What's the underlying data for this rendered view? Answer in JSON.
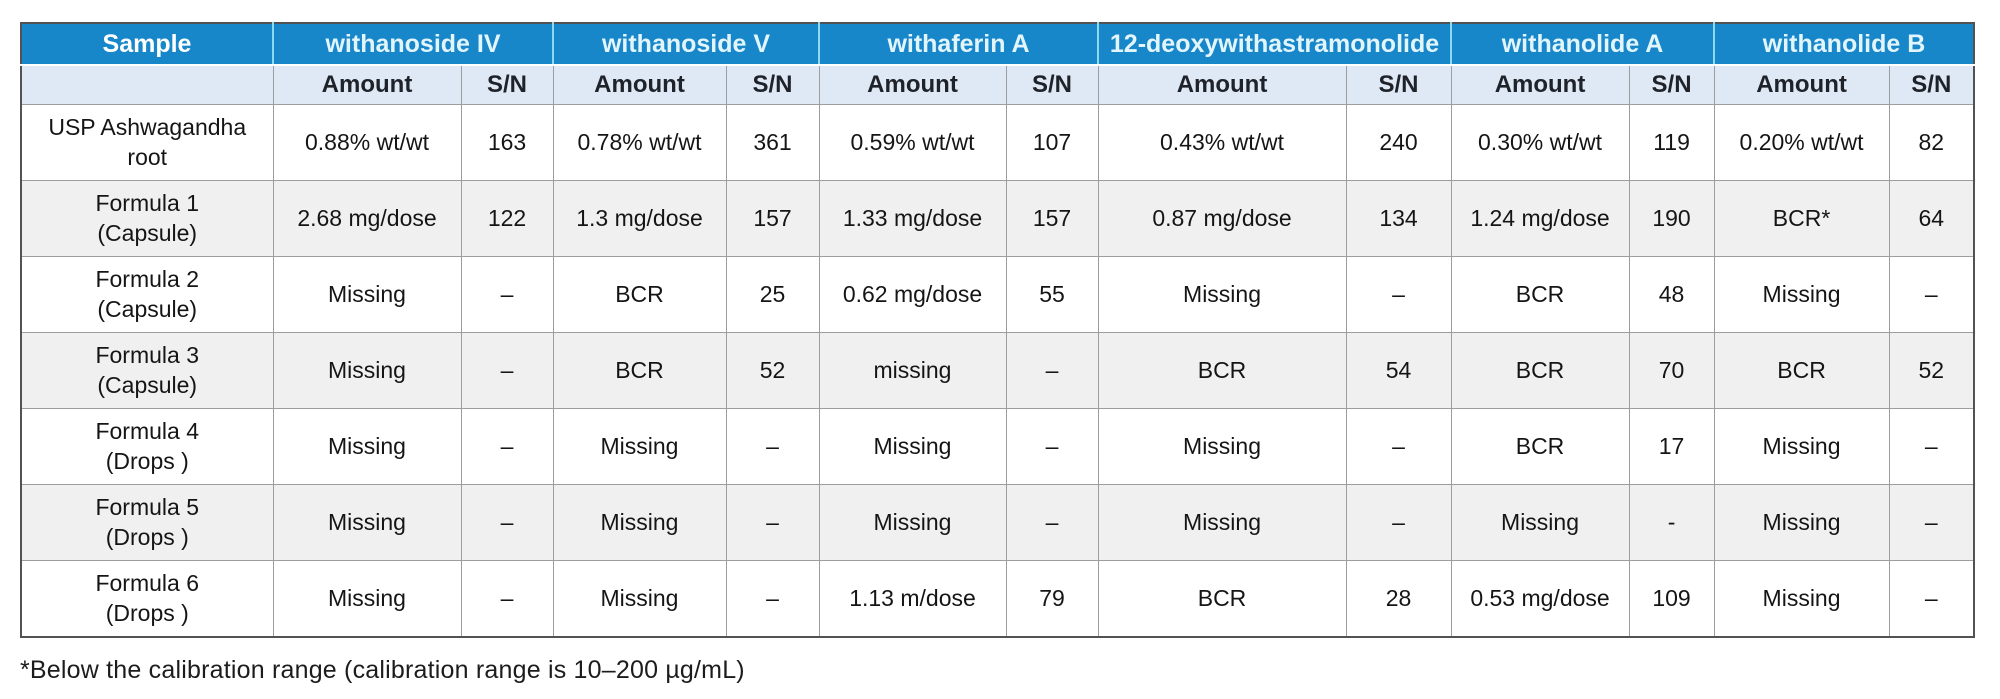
{
  "table": {
    "sample_header": "Sample",
    "sub_headers": {
      "amount": "Amount",
      "sn": "S/N"
    },
    "compound_groups": [
      {
        "name": "withanoside IV"
      },
      {
        "name": "withanoside V"
      },
      {
        "name": "withaferin A"
      },
      {
        "name": "12-deoxywithastramonolide"
      },
      {
        "name": "withanolide A"
      },
      {
        "name": "withanolide B"
      }
    ],
    "rows": [
      {
        "sample": "USP Ashwagandha\nroot",
        "cells": [
          [
            "0.88% wt/wt",
            "163"
          ],
          [
            "0.78% wt/wt",
            "361"
          ],
          [
            "0.59% wt/wt",
            "107"
          ],
          [
            "0.43% wt/wt",
            "240"
          ],
          [
            "0.30% wt/wt",
            "119"
          ],
          [
            "0.20% wt/wt",
            "82"
          ]
        ]
      },
      {
        "sample": "Formula 1\n(Capsule)",
        "cells": [
          [
            "2.68 mg/dose",
            "122"
          ],
          [
            "1.3 mg/dose",
            "157"
          ],
          [
            "1.33 mg/dose",
            "157"
          ],
          [
            "0.87 mg/dose",
            "134"
          ],
          [
            "1.24 mg/dose",
            "190"
          ],
          [
            "BCR*",
            "64"
          ]
        ]
      },
      {
        "sample": "Formula 2\n(Capsule)",
        "cells": [
          [
            "Missing",
            "–"
          ],
          [
            "BCR",
            "25"
          ],
          [
            "0.62 mg/dose",
            "55"
          ],
          [
            "Missing",
            "–"
          ],
          [
            "BCR",
            "48"
          ],
          [
            "Missing",
            "–"
          ]
        ]
      },
      {
        "sample": "Formula 3\n(Capsule)",
        "cells": [
          [
            "Missing",
            "–"
          ],
          [
            "BCR",
            "52"
          ],
          [
            "missing",
            "–"
          ],
          [
            "BCR",
            "54"
          ],
          [
            "BCR",
            "70"
          ],
          [
            "BCR",
            "52"
          ]
        ]
      },
      {
        "sample": "Formula 4\n(Drops )",
        "cells": [
          [
            "Missing",
            "–"
          ],
          [
            "Missing",
            "–"
          ],
          [
            "Missing",
            "–"
          ],
          [
            "Missing",
            "–"
          ],
          [
            "BCR",
            "17"
          ],
          [
            "Missing",
            "–"
          ]
        ]
      },
      {
        "sample": "Formula 5\n(Drops )",
        "cells": [
          [
            "Missing",
            "–"
          ],
          [
            "Missing",
            "–"
          ],
          [
            "Missing",
            "–"
          ],
          [
            "Missing",
            "–"
          ],
          [
            "Missing",
            "-"
          ],
          [
            "Missing",
            "–"
          ]
        ]
      },
      {
        "sample": "Formula 6\n(Drops )",
        "cells": [
          [
            "Missing",
            "–"
          ],
          [
            "Missing",
            "–"
          ],
          [
            "1.13 m/dose",
            "79"
          ],
          [
            "BCR",
            "28"
          ],
          [
            "0.53 mg/dose",
            "109"
          ],
          [
            "Missing",
            "–"
          ]
        ]
      }
    ]
  },
  "footnote": "*Below the calibration range (calibration range is 10–200 µg/mL)"
}
